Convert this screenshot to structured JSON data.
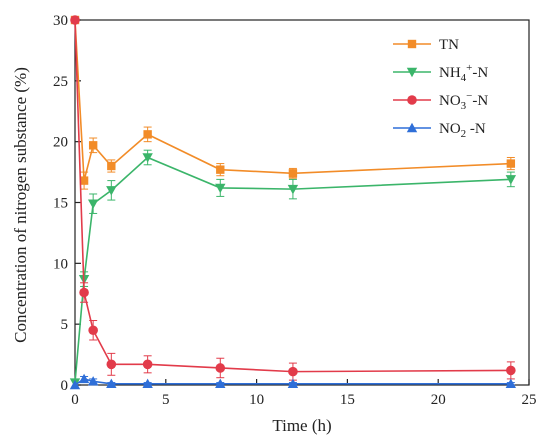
{
  "chart_data": {
    "type": "line",
    "title": "",
    "xlabel": "Time (h)",
    "ylabel": "Concentration of nitrogen substance (%)",
    "xlim": [
      0,
      25
    ],
    "ylim": [
      0,
      30
    ],
    "xticks": [
      0,
      5,
      10,
      15,
      20,
      25
    ],
    "yticks": [
      0,
      5,
      10,
      15,
      20,
      25,
      30
    ],
    "xtick_labels": [
      "0",
      "5",
      "10",
      "15",
      "20",
      "25"
    ],
    "ytick_labels": [
      "0",
      "5",
      "10",
      "15",
      "20",
      "25",
      "30"
    ],
    "grid": false,
    "legend_position": "top-right",
    "series": [
      {
        "name": "TN",
        "legend_main": "TN",
        "legend_sup": "",
        "legend_after": "",
        "color": "#F28C28",
        "marker": "square",
        "x": [
          0,
          0.5,
          1,
          2,
          4,
          8,
          12,
          24
        ],
        "y": [
          30.0,
          16.8,
          19.7,
          18.0,
          20.6,
          17.7,
          17.4,
          18.2
        ],
        "err": [
          0,
          0.7,
          0.6,
          0.5,
          0.6,
          0.5,
          0.4,
          0.5
        ]
      },
      {
        "name": "NH4+-N",
        "legend_main": "NH",
        "legend_sub": "4",
        "legend_sup": "+",
        "legend_after": "-N",
        "color": "#3BB56A",
        "marker": "triangle-down",
        "x": [
          0,
          0.5,
          1,
          2,
          4,
          8,
          12,
          24
        ],
        "y": [
          0.2,
          8.7,
          14.9,
          16.0,
          18.7,
          16.2,
          16.1,
          16.9
        ],
        "err": [
          0,
          0.6,
          0.8,
          0.8,
          0.6,
          0.7,
          0.8,
          0.6
        ]
      },
      {
        "name": "NO3--N",
        "legend_main": "NO",
        "legend_sub": "3",
        "legend_sup": "−",
        "legend_after": "-N",
        "color": "#E23B4A",
        "marker": "circle",
        "x": [
          0,
          0.5,
          1,
          2,
          4,
          8,
          12,
          24
        ],
        "y": [
          30.0,
          7.6,
          4.5,
          1.7,
          1.7,
          1.4,
          1.1,
          1.2
        ],
        "err": [
          0,
          0.8,
          0.8,
          0.9,
          0.7,
          0.8,
          0.7,
          0.7
        ]
      },
      {
        "name": "NO2--N",
        "legend_main": "NO",
        "legend_sub": "2",
        "legend_sup": "",
        "legend_after": " -N",
        "color": "#2F6FD8",
        "marker": "triangle-up",
        "x": [
          0,
          0.5,
          1,
          2,
          4,
          8,
          12,
          24
        ],
        "y": [
          0.0,
          0.5,
          0.3,
          0.1,
          0.1,
          0.1,
          0.1,
          0.1
        ],
        "err": [
          0,
          0.2,
          0.2,
          0.1,
          0.1,
          0.1,
          0.1,
          0.1
        ]
      }
    ]
  }
}
